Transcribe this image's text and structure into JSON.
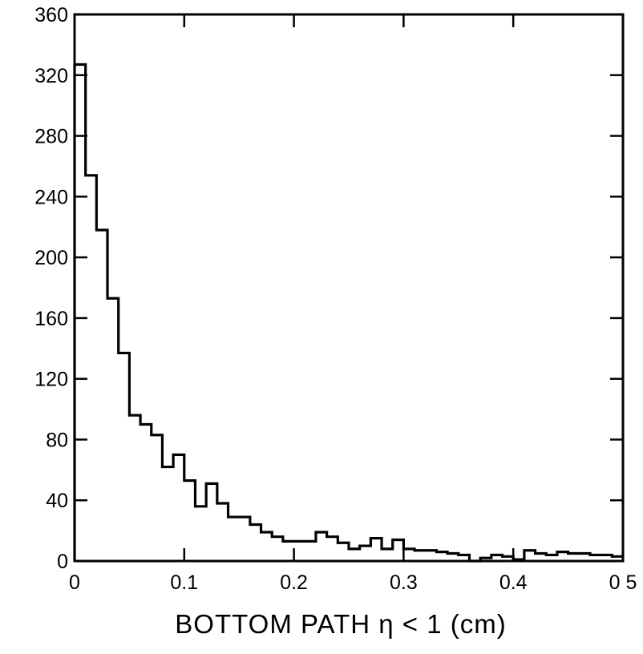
{
  "chart_data": {
    "type": "bar",
    "style": "step-histogram",
    "title": "",
    "xlabel": "BOTTOM PATH η < 1 (cm)",
    "ylabel": "",
    "xlim": [
      0,
      0.5
    ],
    "ylim": [
      0,
      360
    ],
    "x_ticks": [
      0,
      0.1,
      0.2,
      0.3,
      0.4,
      0.5
    ],
    "x_tick_labels": [
      "0",
      "0.1",
      "0.2",
      "0.3",
      "0.4",
      "0 5"
    ],
    "y_ticks": [
      0,
      40,
      80,
      120,
      160,
      200,
      240,
      280,
      320,
      360
    ],
    "y_tick_labels": [
      "0",
      "40",
      "80",
      "120",
      "160",
      "200",
      "240",
      "280",
      "320",
      "360"
    ],
    "bin_width": 0.01,
    "bin_start": 0,
    "values": [
      327,
      254,
      218,
      173,
      137,
      96,
      90,
      83,
      62,
      70,
      53,
      36,
      51,
      38,
      29,
      29,
      24,
      19,
      16,
      13,
      13,
      13,
      19,
      16,
      12,
      8,
      10,
      15,
      8,
      14,
      8,
      7,
      7,
      6,
      5,
      4,
      0,
      2,
      4,
      3,
      1,
      7,
      5,
      4,
      6,
      5,
      5,
      4,
      4,
      3
    ],
    "grid": false,
    "legend": "none",
    "line_color": "#000000"
  }
}
